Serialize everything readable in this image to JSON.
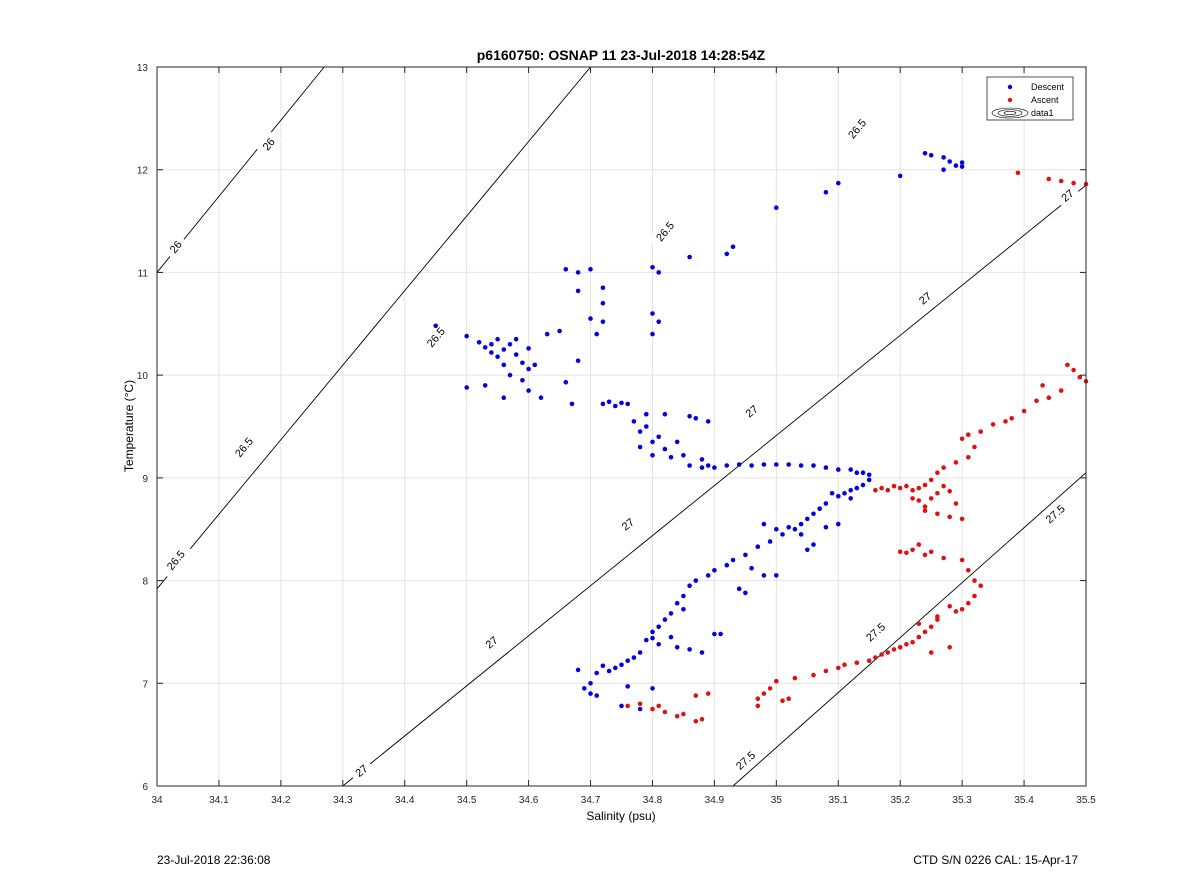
{
  "chart_data": {
    "type": "scatter",
    "title": "p6160750: OSNAP 11 23-Jul-2018 14:28:54Z",
    "xlabel": "Salinity (psu)",
    "ylabel": "Temperature (°C)",
    "xlim": [
      34,
      35.5
    ],
    "ylim": [
      6,
      13
    ],
    "xticks": [
      34,
      34.1,
      34.2,
      34.3,
      34.4,
      34.5,
      34.6,
      34.7,
      34.8,
      34.9,
      35,
      35.1,
      35.2,
      35.3,
      35.4,
      35.5
    ],
    "xtick_labels": [
      "34",
      "34.1",
      "34.2",
      "34.3",
      "34.4",
      "34.5",
      "34.6",
      "34.7",
      "34.8",
      "34.9",
      "35",
      "35.1",
      "35.2",
      "35.3",
      "35.4",
      "35.5"
    ],
    "yticks": [
      6,
      7,
      8,
      9,
      10,
      11,
      12,
      13
    ],
    "ytick_labels": [
      "6",
      "7",
      "8",
      "9",
      "10",
      "11",
      "12",
      "13"
    ],
    "grid": true,
    "legend_position": "top-right",
    "legend": [
      "Descent",
      "Ascent",
      "data1"
    ],
    "colors": {
      "descent": "#0000e0",
      "ascent": "#e01010",
      "contour": "#000000",
      "grid": "#e4e4e4"
    },
    "contours": [
      {
        "label": "26",
        "points": [
          [
            34.0,
            11.0
          ],
          [
            34.27,
            13.0
          ]
        ],
        "label_positions": [
          [
            34.03,
            11.25
          ],
          [
            34.18,
            12.25
          ]
        ]
      },
      {
        "label": "26.5",
        "points": [
          [
            34.0,
            7.92
          ],
          [
            34.7,
            13.0
          ]
        ],
        "label_positions": [
          [
            34.03,
            8.2
          ],
          [
            34.14,
            9.3
          ],
          [
            34.45,
            10.37
          ],
          [
            34.82,
            11.4
          ],
          [
            35.13,
            12.4
          ]
        ]
      },
      {
        "label": "27",
        "points": [
          [
            34.3,
            6.0
          ],
          [
            35.5,
            11.85
          ]
        ],
        "label_positions": [
          [
            34.33,
            6.15
          ],
          [
            34.54,
            7.4
          ],
          [
            34.76,
            8.55
          ],
          [
            34.96,
            9.65
          ],
          [
            35.24,
            10.75
          ],
          [
            35.47,
            11.75
          ]
        ]
      },
      {
        "label": "27.5",
        "points": [
          [
            34.93,
            6.0
          ],
          [
            35.5,
            9.05
          ]
        ],
        "label_positions": [
          [
            34.95,
            6.25
          ],
          [
            35.16,
            7.5
          ],
          [
            35.45,
            8.65
          ]
        ]
      }
    ],
    "series": [
      {
        "name": "Descent",
        "points": [
          [
            34.45,
            10.48
          ],
          [
            34.5,
            10.38
          ],
          [
            34.5,
            9.88
          ],
          [
            34.52,
            10.32
          ],
          [
            34.53,
            10.27
          ],
          [
            34.54,
            10.3
          ],
          [
            34.54,
            10.22
          ],
          [
            34.55,
            10.35
          ],
          [
            34.55,
            10.18
          ],
          [
            34.56,
            10.25
          ],
          [
            34.56,
            10.1
          ],
          [
            34.57,
            10.3
          ],
          [
            34.57,
            10.0
          ],
          [
            34.58,
            10.2
          ],
          [
            34.58,
            10.35
          ],
          [
            34.59,
            10.12
          ],
          [
            34.59,
            9.95
          ],
          [
            34.6,
            10.26
          ],
          [
            34.6,
            10.06
          ],
          [
            34.6,
            9.85
          ],
          [
            34.61,
            10.1
          ],
          [
            34.62,
            9.78
          ],
          [
            34.56,
            9.78
          ],
          [
            34.53,
            9.9
          ],
          [
            34.63,
            10.4
          ],
          [
            34.65,
            10.43
          ],
          [
            34.66,
            9.93
          ],
          [
            34.67,
            9.72
          ],
          [
            34.68,
            10.14
          ],
          [
            34.66,
            11.03
          ],
          [
            34.68,
            11.0
          ],
          [
            34.7,
            11.03
          ],
          [
            34.68,
            10.82
          ],
          [
            34.7,
            10.55
          ],
          [
            34.72,
            10.52
          ],
          [
            34.71,
            10.4
          ],
          [
            34.72,
            10.85
          ],
          [
            34.72,
            10.7
          ],
          [
            34.8,
            11.05
          ],
          [
            34.81,
            11.0
          ],
          [
            34.8,
            10.6
          ],
          [
            34.81,
            10.52
          ],
          [
            34.8,
            10.4
          ],
          [
            34.86,
            11.15
          ],
          [
            34.92,
            11.18
          ],
          [
            34.93,
            11.25
          ],
          [
            35.0,
            11.63
          ],
          [
            35.08,
            11.78
          ],
          [
            35.1,
            11.87
          ],
          [
            35.2,
            11.94
          ],
          [
            35.24,
            12.16
          ],
          [
            35.25,
            12.14
          ],
          [
            35.27,
            12.12
          ],
          [
            35.28,
            12.08
          ],
          [
            35.29,
            12.04
          ],
          [
            35.3,
            12.07
          ],
          [
            35.27,
            12.0
          ],
          [
            35.3,
            12.03
          ],
          [
            34.72,
            9.72
          ],
          [
            34.73,
            9.74
          ],
          [
            34.74,
            9.7
          ],
          [
            34.75,
            9.73
          ],
          [
            34.76,
            9.72
          ],
          [
            34.77,
            9.55
          ],
          [
            34.78,
            9.45
          ],
          [
            34.78,
            9.3
          ],
          [
            34.79,
            9.5
          ],
          [
            34.79,
            9.62
          ],
          [
            34.8,
            9.35
          ],
          [
            34.8,
            9.22
          ],
          [
            34.81,
            9.4
          ],
          [
            34.82,
            9.62
          ],
          [
            34.82,
            9.28
          ],
          [
            34.83,
            9.2
          ],
          [
            34.84,
            9.35
          ],
          [
            34.85,
            9.22
          ],
          [
            34.86,
            9.6
          ],
          [
            34.87,
            9.58
          ],
          [
            34.88,
            9.18
          ],
          [
            34.89,
            9.55
          ],
          [
            34.86,
            9.12
          ],
          [
            34.88,
            9.1
          ],
          [
            34.89,
            9.12
          ],
          [
            34.9,
            9.1
          ],
          [
            34.92,
            9.12
          ],
          [
            34.94,
            9.13
          ],
          [
            34.96,
            9.12
          ],
          [
            34.98,
            9.13
          ],
          [
            35.0,
            9.13
          ],
          [
            35.02,
            9.13
          ],
          [
            35.04,
            9.12
          ],
          [
            35.06,
            9.12
          ],
          [
            35.08,
            9.1
          ],
          [
            35.1,
            9.08
          ],
          [
            35.12,
            9.08
          ],
          [
            35.13,
            9.05
          ],
          [
            35.14,
            9.05
          ],
          [
            35.15,
            9.03
          ],
          [
            35.15,
            8.98
          ],
          [
            35.14,
            8.93
          ],
          [
            35.13,
            8.9
          ],
          [
            35.12,
            8.88
          ],
          [
            35.11,
            8.85
          ],
          [
            35.1,
            8.82
          ],
          [
            35.09,
            8.85
          ],
          [
            35.12,
            8.8
          ],
          [
            35.08,
            8.75
          ],
          [
            35.07,
            8.7
          ],
          [
            35.06,
            8.65
          ],
          [
            35.05,
            8.6
          ],
          [
            35.04,
            8.55
          ],
          [
            35.03,
            8.5
          ],
          [
            35.02,
            8.52
          ],
          [
            35.01,
            8.45
          ],
          [
            35.0,
            8.5
          ],
          [
            34.98,
            8.55
          ],
          [
            34.99,
            8.38
          ],
          [
            35.04,
            8.45
          ],
          [
            35.06,
            8.35
          ],
          [
            35.05,
            8.3
          ],
          [
            35.08,
            8.52
          ],
          [
            35.1,
            8.55
          ],
          [
            34.97,
            8.33
          ],
          [
            34.95,
            8.25
          ],
          [
            34.93,
            8.2
          ],
          [
            34.92,
            8.15
          ],
          [
            34.9,
            8.1
          ],
          [
            34.89,
            8.05
          ],
          [
            34.87,
            8.0
          ],
          [
            34.86,
            7.95
          ],
          [
            34.85,
            7.85
          ],
          [
            34.84,
            7.78
          ],
          [
            34.85,
            7.72
          ],
          [
            34.83,
            7.68
          ],
          [
            34.82,
            7.62
          ],
          [
            34.81,
            7.55
          ],
          [
            34.8,
            7.5
          ],
          [
            34.8,
            7.44
          ],
          [
            34.79,
            7.42
          ],
          [
            34.81,
            7.38
          ],
          [
            34.83,
            7.45
          ],
          [
            34.84,
            7.35
          ],
          [
            34.86,
            7.33
          ],
          [
            34.88,
            7.3
          ],
          [
            34.9,
            7.48
          ],
          [
            34.91,
            7.48
          ],
          [
            34.78,
            7.3
          ],
          [
            34.77,
            7.25
          ],
          [
            34.76,
            7.22
          ],
          [
            34.75,
            7.18
          ],
          [
            34.74,
            7.15
          ],
          [
            34.73,
            7.12
          ],
          [
            34.72,
            7.17
          ],
          [
            34.71,
            7.1
          ],
          [
            34.7,
            7.0
          ],
          [
            34.69,
            6.95
          ],
          [
            34.7,
            6.9
          ],
          [
            34.71,
            6.88
          ],
          [
            34.68,
            7.13
          ],
          [
            34.75,
            6.78
          ],
          [
            34.78,
            6.75
          ],
          [
            34.76,
            6.97
          ],
          [
            34.8,
            6.95
          ],
          [
            34.96,
            8.12
          ],
          [
            34.98,
            8.05
          ],
          [
            35.0,
            8.05
          ],
          [
            34.95,
            7.88
          ],
          [
            34.94,
            7.92
          ]
        ]
      },
      {
        "name": "Ascent",
        "points": [
          [
            35.39,
            11.97
          ],
          [
            35.44,
            11.91
          ],
          [
            35.46,
            11.89
          ],
          [
            35.48,
            11.87
          ],
          [
            35.5,
            11.86
          ],
          [
            35.47,
            10.1
          ],
          [
            35.48,
            10.05
          ],
          [
            35.49,
            9.98
          ],
          [
            35.5,
            9.94
          ],
          [
            35.46,
            9.85
          ],
          [
            35.44,
            9.78
          ],
          [
            35.43,
            9.9
          ],
          [
            35.42,
            9.75
          ],
          [
            35.4,
            9.65
          ],
          [
            35.38,
            9.58
          ],
          [
            35.37,
            9.55
          ],
          [
            35.35,
            9.52
          ],
          [
            35.33,
            9.45
          ],
          [
            35.31,
            9.42
          ],
          [
            35.3,
            9.38
          ],
          [
            35.32,
            9.3
          ],
          [
            35.31,
            9.2
          ],
          [
            35.29,
            9.15
          ],
          [
            35.27,
            9.1
          ],
          [
            35.26,
            9.05
          ],
          [
            35.25,
            8.98
          ],
          [
            35.24,
            8.93
          ],
          [
            35.23,
            8.9
          ],
          [
            35.22,
            8.88
          ],
          [
            35.21,
            8.92
          ],
          [
            35.2,
            8.9
          ],
          [
            35.19,
            8.92
          ],
          [
            35.18,
            8.88
          ],
          [
            35.17,
            8.9
          ],
          [
            35.16,
            8.88
          ],
          [
            35.22,
            8.8
          ],
          [
            35.23,
            8.78
          ],
          [
            35.24,
            8.72
          ],
          [
            35.25,
            8.8
          ],
          [
            35.26,
            8.85
          ],
          [
            35.27,
            8.92
          ],
          [
            35.28,
            8.87
          ],
          [
            35.29,
            8.75
          ],
          [
            35.3,
            8.6
          ],
          [
            35.28,
            8.62
          ],
          [
            35.26,
            8.65
          ],
          [
            35.24,
            8.68
          ],
          [
            35.22,
            8.3
          ],
          [
            35.21,
            8.27
          ],
          [
            35.2,
            8.28
          ],
          [
            35.23,
            8.35
          ],
          [
            35.24,
            8.25
          ],
          [
            35.25,
            8.28
          ],
          [
            35.27,
            8.22
          ],
          [
            35.3,
            8.2
          ],
          [
            35.31,
            8.1
          ],
          [
            35.32,
            8.0
          ],
          [
            35.33,
            7.95
          ],
          [
            35.32,
            7.85
          ],
          [
            35.31,
            7.78
          ],
          [
            35.3,
            7.72
          ],
          [
            35.29,
            7.7
          ],
          [
            35.28,
            7.75
          ],
          [
            35.26,
            7.65
          ],
          [
            35.25,
            7.55
          ],
          [
            35.24,
            7.5
          ],
          [
            35.23,
            7.45
          ],
          [
            35.22,
            7.4
          ],
          [
            35.21,
            7.38
          ],
          [
            35.2,
            7.35
          ],
          [
            35.19,
            7.33
          ],
          [
            35.18,
            7.3
          ],
          [
            35.17,
            7.28
          ],
          [
            35.16,
            7.25
          ],
          [
            35.15,
            7.22
          ],
          [
            35.13,
            7.2
          ],
          [
            35.11,
            7.18
          ],
          [
            35.1,
            7.15
          ],
          [
            35.08,
            7.12
          ],
          [
            35.06,
            7.08
          ],
          [
            35.03,
            7.05
          ],
          [
            35.0,
            7.02
          ],
          [
            34.99,
            6.95
          ],
          [
            34.98,
            6.9
          ],
          [
            34.97,
            6.85
          ],
          [
            35.01,
            6.83
          ],
          [
            35.02,
            6.85
          ],
          [
            34.97,
            6.78
          ],
          [
            34.89,
            6.9
          ],
          [
            34.87,
            6.88
          ],
          [
            34.88,
            6.65
          ],
          [
            34.87,
            6.63
          ],
          [
            34.85,
            6.7
          ],
          [
            34.84,
            6.68
          ],
          [
            34.82,
            6.72
          ],
          [
            34.81,
            6.78
          ],
          [
            34.8,
            6.75
          ],
          [
            34.78,
            6.8
          ],
          [
            34.76,
            6.78
          ],
          [
            35.25,
            7.3
          ],
          [
            35.28,
            7.35
          ],
          [
            35.26,
            7.62
          ],
          [
            35.23,
            7.58
          ]
        ]
      },
      {
        "name": "data1",
        "points": []
      }
    ]
  },
  "footer": {
    "left": "23-Jul-2018 22:36:08",
    "right": "CTD S/N 0226  CAL: 15-Apr-17"
  }
}
